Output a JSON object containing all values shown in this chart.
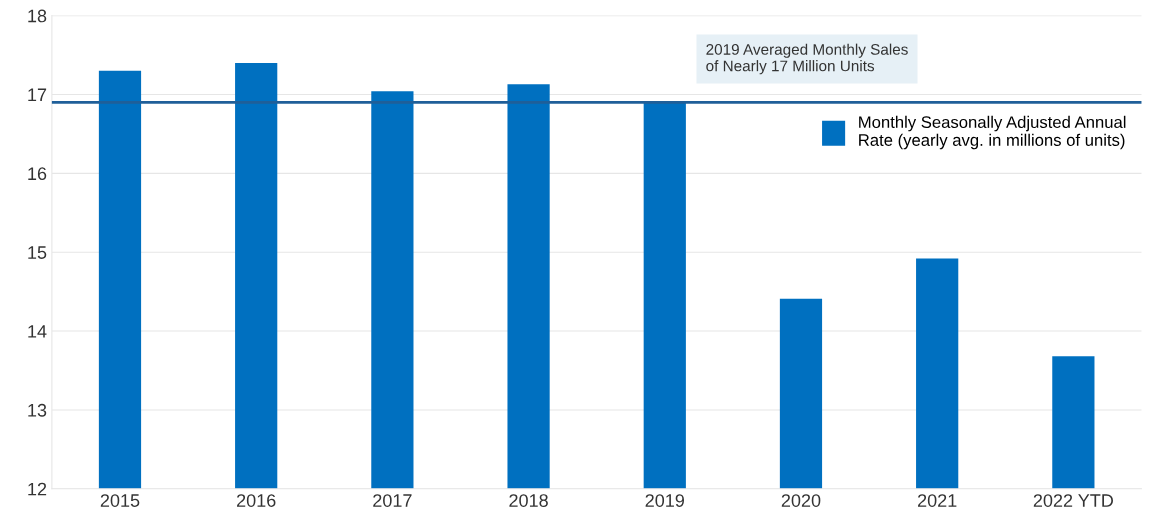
{
  "chart_data": {
    "type": "bar",
    "categories": [
      "2015",
      "2016",
      "2017",
      "2018",
      "2019",
      "2020",
      "2021",
      "2022 YTD"
    ],
    "series": [
      {
        "name": "Monthly Seasonally Adjusted Annual Rate (yearly avg. in millions of units)",
        "color": "#0070c0",
        "values": [
          17.3,
          17.4,
          17.04,
          17.13,
          16.91,
          14.41,
          14.92,
          13.68
        ]
      }
    ],
    "ylim": [
      12,
      18
    ],
    "yticks": [
      12,
      13,
      14,
      15,
      16,
      17,
      18
    ],
    "grid": "y",
    "legend": "top right",
    "ref_lines": [
      {
        "axis": "y",
        "value": 16.9,
        "label": "2019 Averaged Monthly Sales\nof Nearly 17 Million Units",
        "color": "#1f5f99",
        "line_style": "solid"
      }
    ]
  }
}
